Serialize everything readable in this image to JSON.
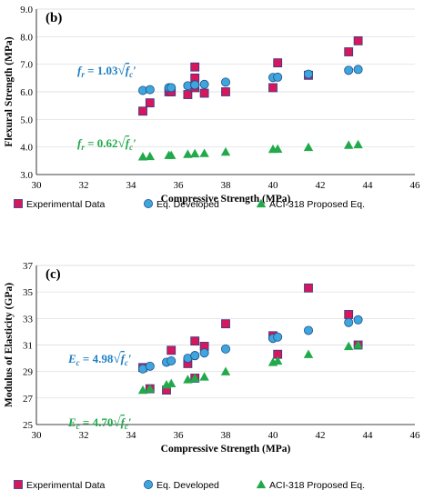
{
  "colors": {
    "experimental_fill": "#D6175A",
    "experimental_stroke": "#2E3C8C",
    "developed_fill": "#3FA6DD",
    "developed_stroke": "#1F4E8C",
    "aci_fill": "#22A94B",
    "eq_developed_text": "#1F7FC2",
    "eq_aci_text": "#22A94B"
  },
  "icons": {
    "experimental": "square-marker",
    "developed": "circle-marker",
    "aci": "triangle-marker"
  },
  "chart_data": [
    {
      "type": "scatter",
      "panel_label": "(b)",
      "xlabel": "Compressive Strength (MPa)",
      "ylabel": "Flexural Strength (MPa)",
      "xlim": [
        30,
        46
      ],
      "ylim": [
        3.0,
        9.0
      ],
      "x_ticks": [
        30,
        32,
        34,
        36,
        38,
        40,
        42,
        44,
        46
      ],
      "y_ticks": [
        3.0,
        4.0,
        5.0,
        6.0,
        7.0,
        8.0,
        9.0
      ],
      "x_tick_labels": [
        "30",
        "32",
        "34",
        "36",
        "38",
        "40",
        "42",
        "44",
        "46"
      ],
      "y_tick_labels": [
        "3.0",
        "4.0",
        "5.0",
        "6.0",
        "7.0",
        "8.0",
        "9.0"
      ],
      "grid": "horizontal",
      "legend_position": "bottom",
      "annotations": [
        {
          "text_prefix": "f",
          "text_sub": "r",
          "coef": " = 1.03",
          "radicand": "f",
          "radicand_sub": "c",
          "color": "#1F7FC2"
        },
        {
          "text_prefix": "f",
          "text_sub": "r",
          "coef": " = 0.62",
          "radicand": "f",
          "radicand_sub": "c",
          "color": "#22A94B"
        }
      ],
      "series": [
        {
          "name": "Experimental Data",
          "marker": "square",
          "x": [
            34.5,
            34.8,
            35.6,
            35.7,
            36.4,
            36.7,
            36.7,
            36.7,
            37.1,
            38.0,
            40.0,
            40.2,
            41.5,
            43.2,
            43.6
          ],
          "y": [
            5.3,
            5.6,
            6.0,
            6.0,
            5.9,
            6.9,
            6.5,
            6.15,
            5.95,
            6.0,
            6.15,
            7.05,
            6.6,
            7.45,
            7.85
          ]
        },
        {
          "name": "Eq. Developed",
          "marker": "circle",
          "x": [
            34.5,
            34.8,
            35.6,
            35.7,
            36.4,
            36.7,
            36.7,
            37.1,
            38.0,
            40.0,
            40.2,
            41.5,
            43.2,
            43.6
          ],
          "y": [
            6.05,
            6.08,
            6.15,
            6.15,
            6.22,
            6.25,
            6.25,
            6.27,
            6.35,
            6.52,
            6.53,
            6.64,
            6.78,
            6.81
          ]
        },
        {
          "name": "ACI-318 Proposed Eq.",
          "marker": "triangle",
          "x": [
            34.5,
            34.8,
            35.6,
            35.7,
            36.4,
            36.7,
            37.1,
            38.0,
            40.0,
            40.2,
            41.5,
            43.2,
            43.6
          ],
          "y": [
            3.65,
            3.66,
            3.7,
            3.7,
            3.74,
            3.76,
            3.77,
            3.82,
            3.92,
            3.93,
            3.99,
            4.07,
            4.09
          ]
        }
      ]
    },
    {
      "type": "scatter",
      "panel_label": "(c)",
      "xlabel": "Compressive Strength (MPa)",
      "ylabel": "Modulus of Elasticity (GPa)",
      "xlim": [
        30,
        46
      ],
      "ylim": [
        25,
        37
      ],
      "x_ticks": [
        30,
        32,
        34,
        36,
        38,
        40,
        42,
        44,
        46
      ],
      "y_ticks": [
        25,
        27,
        29,
        31,
        33,
        35,
        37
      ],
      "x_tick_labels": [
        "30",
        "32",
        "34",
        "36",
        "38",
        "40",
        "42",
        "44",
        "46"
      ],
      "y_tick_labels": [
        "25",
        "27",
        "29",
        "31",
        "33",
        "35",
        "37"
      ],
      "grid": "horizontal",
      "legend_position": "bottom",
      "annotations": [
        {
          "text_prefix": "E",
          "text_sub": "c",
          "coef": " = 4.98",
          "radicand": "f",
          "radicand_sub": "c",
          "color": "#1F7FC2"
        },
        {
          "text_prefix": "E",
          "text_sub": "c",
          "coef": " = 4.70",
          "radicand": "f",
          "radicand_sub": "c",
          "color": "#22A94B"
        }
      ],
      "series": [
        {
          "name": "Experimental Data",
          "marker": "square",
          "x": [
            34.5,
            34.8,
            35.5,
            35.7,
            36.4,
            36.7,
            36.7,
            37.1,
            38.0,
            40.0,
            40.2,
            41.5,
            43.2,
            43.6
          ],
          "y": [
            29.3,
            27.7,
            27.6,
            30.6,
            29.6,
            31.3,
            28.5,
            30.9,
            32.6,
            31.7,
            30.3,
            35.3,
            33.3,
            31.0
          ]
        },
        {
          "name": "Eq. Developed",
          "marker": "circle",
          "x": [
            34.5,
            34.8,
            35.5,
            35.7,
            36.4,
            36.7,
            36.7,
            37.1,
            38.0,
            40.0,
            40.2,
            41.5,
            43.2,
            43.6
          ],
          "y": [
            29.2,
            29.4,
            29.7,
            29.8,
            30.0,
            30.2,
            30.2,
            30.4,
            30.7,
            31.5,
            31.6,
            32.1,
            32.7,
            32.9
          ]
        },
        {
          "name": "ACI-318 Proposed Eq.",
          "marker": "triangle",
          "x": [
            34.5,
            34.8,
            35.5,
            35.7,
            36.4,
            36.7,
            36.7,
            37.1,
            38.0,
            40.0,
            40.2,
            41.5,
            43.2,
            43.6
          ],
          "y": [
            27.6,
            27.7,
            28.0,
            28.1,
            28.4,
            28.5,
            28.5,
            28.6,
            29.0,
            29.7,
            29.8,
            30.3,
            30.9,
            31.0
          ]
        }
      ]
    }
  ]
}
